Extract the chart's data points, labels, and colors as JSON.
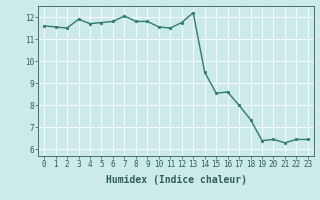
{
  "x": [
    0,
    1,
    2,
    3,
    4,
    5,
    6,
    7,
    8,
    9,
    10,
    11,
    12,
    13,
    14,
    15,
    16,
    17,
    18,
    19,
    20,
    21,
    22,
    23
  ],
  "y": [
    11.6,
    11.55,
    11.5,
    11.9,
    11.7,
    11.75,
    11.8,
    12.05,
    11.8,
    11.8,
    11.55,
    11.5,
    11.75,
    12.2,
    9.5,
    8.55,
    8.6,
    8.0,
    7.35,
    6.4,
    6.45,
    6.3,
    6.45,
    6.45
  ],
  "line_color": "#2e7b6e",
  "marker": "o",
  "marker_size": 2.0,
  "line_width": 1.0,
  "bg_color": "#cceae9",
  "grid_color": "#ffffff",
  "tick_color": "#2e5e5a",
  "xlabel": "Humidex (Indice chaleur)",
  "xlabel_fontsize": 7,
  "ylim": [
    5.7,
    12.5
  ],
  "xlim": [
    -0.5,
    23.5
  ],
  "yticks": [
    6,
    7,
    8,
    9,
    10,
    11,
    12
  ],
  "xticks": [
    0,
    1,
    2,
    3,
    4,
    5,
    6,
    7,
    8,
    9,
    10,
    11,
    12,
    13,
    14,
    15,
    16,
    17,
    18,
    19,
    20,
    21,
    22,
    23
  ],
  "tick_fontsize": 5.5,
  "grid_linewidth": 0.6
}
